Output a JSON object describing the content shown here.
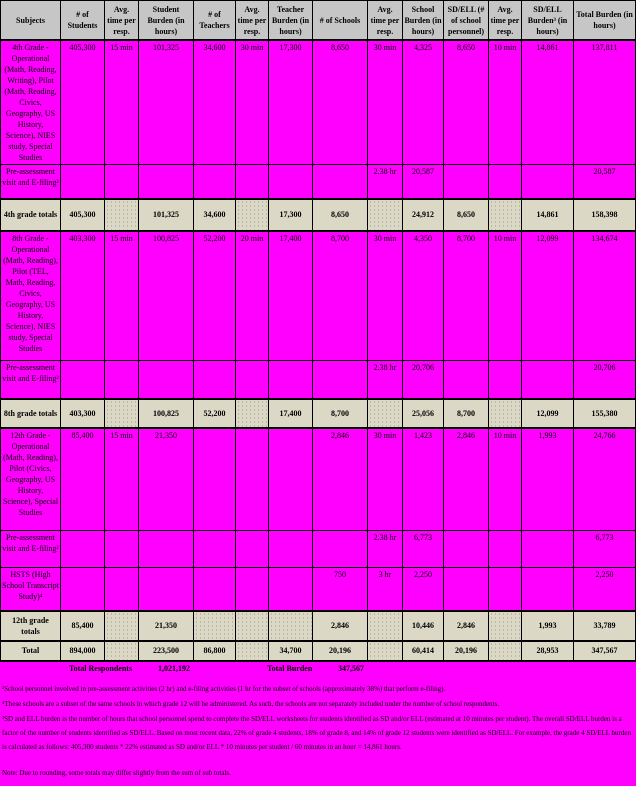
{
  "colors": {
    "highlight": "#FF00FF",
    "header_bg": "#C6C6C6",
    "subtotal_bg": "#DBD8C6",
    "border": "#000000"
  },
  "table": {
    "columns": [
      "Subjects",
      "# of Students",
      "Avg. time per resp.",
      "Student Burden (in hours)",
      "# of Teachers",
      "Avg. time per resp.",
      "Teacher Burden (in hours)",
      "# of Schools",
      "Avg. time per resp.",
      "School Burden (in hours)",
      "SD/ELL (# of school personnel)",
      "Avg. time per resp.",
      "SD/ELL Burden³ (in hours)",
      "Total Burden (in hours)"
    ],
    "rows": [
      {
        "type": "data",
        "cells": [
          "4th Grade - Operational (Math, Reading, Writing), Pilot (Math, Reading, Civics, Geography, US History, Science), NIES study, Special Studies",
          "405,300",
          "15 min",
          "101,325",
          "34,600",
          "30 min",
          "17,300",
          "8,650",
          "30 min",
          "4,325",
          "8,650",
          "10 min",
          "14,861",
          "137,811"
        ]
      },
      {
        "type": "data",
        "cells": [
          "Pre-assessment visit and E-filing²",
          "",
          "",
          "",
          "",
          "",
          "",
          "",
          "2.38 hr",
          "20,587",
          "",
          "",
          "",
          "20,587"
        ]
      },
      {
        "type": "subtotal",
        "cells": [
          "4th grade totals",
          "405,300",
          "",
          "101,325",
          "34,600",
          "",
          "17,300",
          "8,650",
          "",
          "24,912",
          "8,650",
          "",
          "14,861",
          "158,398"
        ]
      },
      {
        "type": "data",
        "cells": [
          "8th Grade - Operational (Math, Reading), Pilot (TEL, Math, Reading, Civics, Geography, US History, Science), NIES study, Special Studies",
          "403,300",
          "15 min",
          "100,825",
          "52,200",
          "20 min",
          "17,400",
          "8,700",
          "30 min",
          "4,350",
          "8,700",
          "10 min",
          "12,099",
          "134,674"
        ]
      },
      {
        "type": "data",
        "cells": [
          "Pre-assessment visit and E-filing²",
          "",
          "",
          "",
          "",
          "",
          "",
          "",
          "2.38 hr",
          "20,706",
          "",
          "",
          "",
          "20,706"
        ]
      },
      {
        "type": "subtotal",
        "cells": [
          "8th grade totals",
          "403,300",
          "",
          "100,825",
          "52,200",
          "",
          "17,400",
          "8,700",
          "",
          "25,056",
          "8,700",
          "",
          "12,099",
          "155,380"
        ]
      },
      {
        "type": "data",
        "cells": [
          "12th Grade - Operational (Math, Reading), Pilot (Civics, Geography, US History, Science), Special Studies",
          "85,400",
          "15 min",
          "21,350",
          "",
          "",
          "",
          "2,846",
          "30 min",
          "1,423",
          "2,846",
          "10 min",
          "1,993",
          "24,766"
        ]
      },
      {
        "type": "data",
        "cells": [
          "Pre-assessment visit and E-filing²",
          "",
          "",
          "",
          "",
          "",
          "",
          "",
          "2.38 hr",
          "6,773",
          "",
          "",
          "",
          "6,773"
        ]
      },
      {
        "type": "data",
        "cells": [
          "HSTS (High School Transcript Study)⁴",
          "",
          "",
          "",
          "",
          "",
          "",
          "750",
          "3 hr",
          "2,250",
          "",
          "",
          "",
          "2,250"
        ]
      },
      {
        "type": "subtotal",
        "cells": [
          "12th grade totals",
          "85,400",
          "",
          "21,350",
          "",
          "",
          "",
          "2,846",
          "",
          "10,446",
          "2,846",
          "",
          "1,993",
          "33,789"
        ]
      },
      {
        "type": "total",
        "cells": [
          "Total",
          "894,000",
          "",
          "223,500",
          "86,800",
          "",
          "34,700",
          "20,196",
          "",
          "60,414",
          "20,196",
          "",
          "28,953",
          "347,567"
        ]
      }
    ],
    "summary": {
      "respondents_label": "Total Respondents",
      "respondents_value": "1,021,192",
      "burden_label": "Total Burden",
      "burden_value": "347,567"
    }
  },
  "footnotes": [
    "²School personnel involved in pre-assessment activities (2 hr) and e-filing activities (1 hr for the subset of schools (approximately 38%) that perform e-filing).",
    "⁴These schools are a subset of the same schools in which grade 12 will be administered.  As such, the schools are not separately included under the number of school respondents.",
    "³SD and ELL burden is the number of hours that school personnel spend to complete the SD/ELL worksheets for students identified as SD and/or ELL (estimated at 10 minutes per student). The overall SD/ELL burden is a factor of the number of students identified as SD/ELL. Based on most recent data, 22% of grade 4 students, 18% of grade 8, and 14% of grade 12 students were identified as SD/ELL. For example, the grade 4 SD/ELL burden is calculated as follows: 405,300 students * 22% estimated as SD and/or ELL * 10 minutes per student / 60 minutes in an hour = 14,861 hours."
  ],
  "bottom_note": "Note: Due to rounding, some totals may differ slightly from the sum of sub totals."
}
